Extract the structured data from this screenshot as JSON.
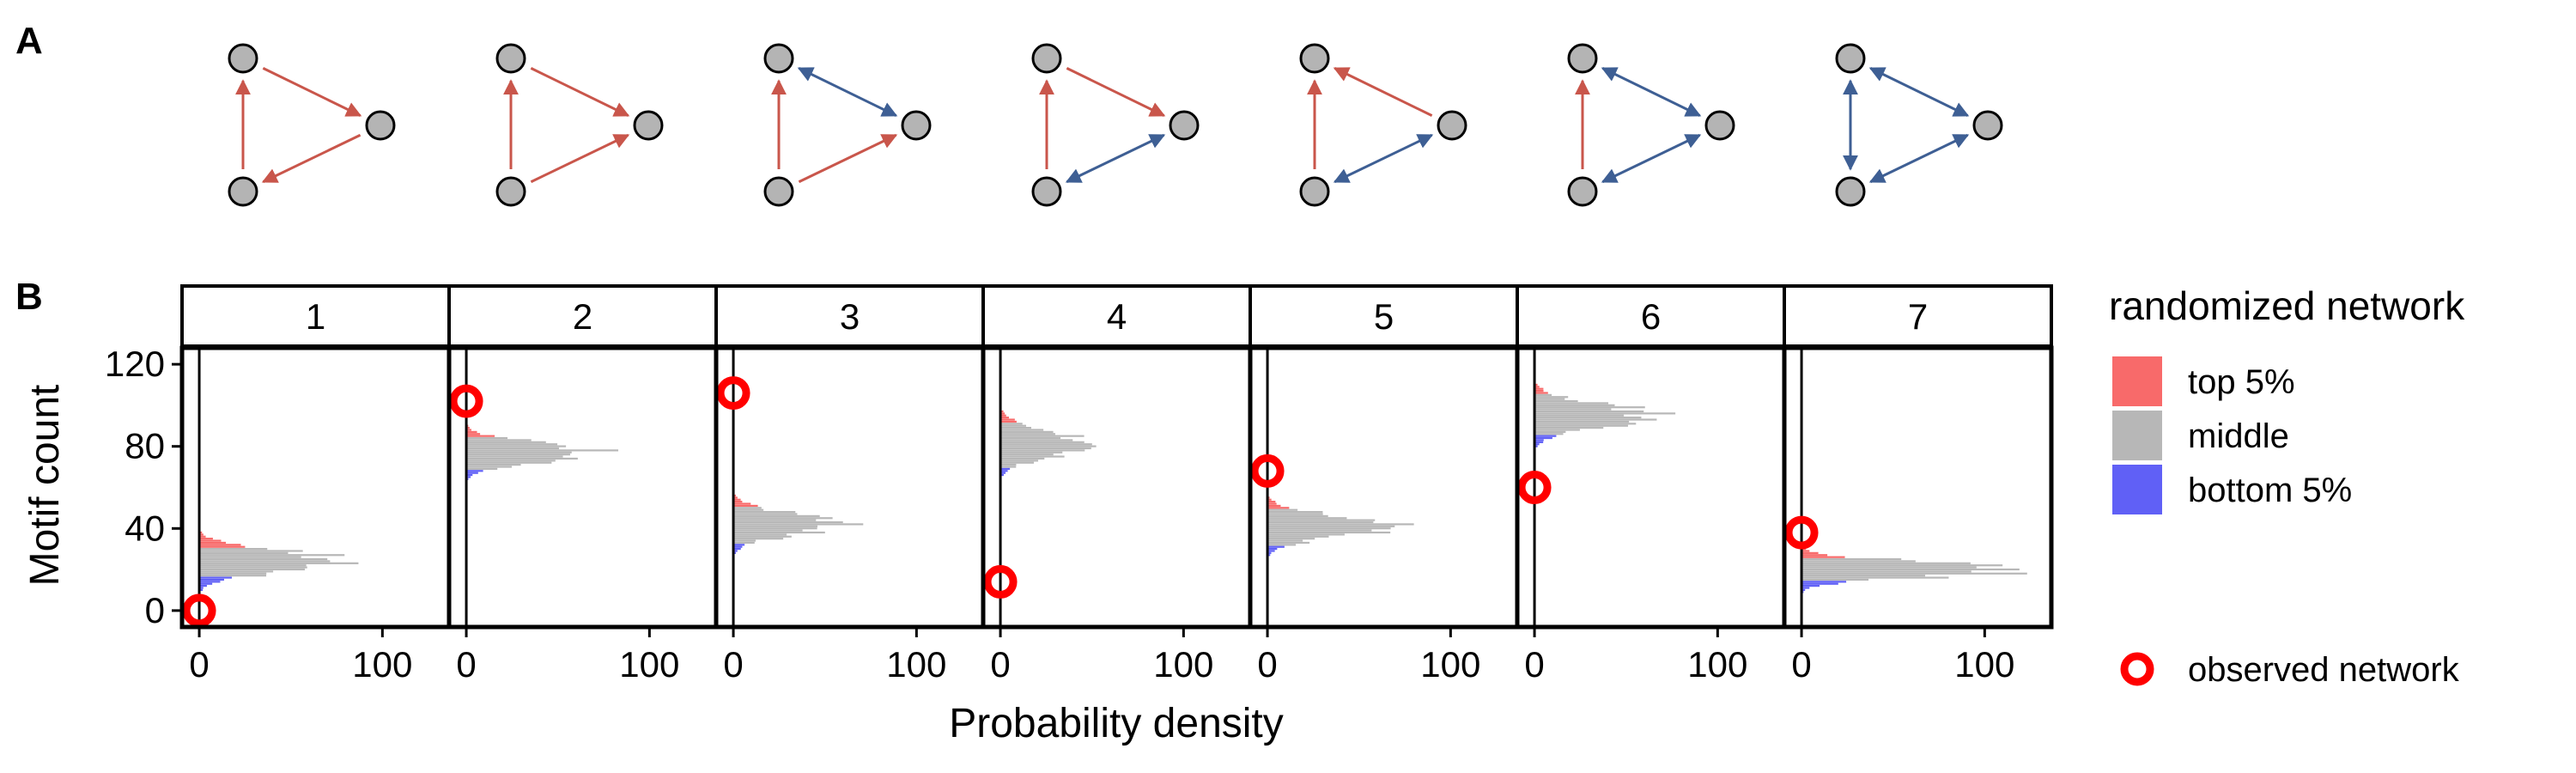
{
  "panel_labels": [
    "A",
    "B"
  ],
  "motifs": [
    {
      "edges": [
        {
          "f": 0,
          "t": 1,
          "bi": false
        },
        {
          "f": 1,
          "t": 2,
          "bi": false
        },
        {
          "f": 2,
          "t": 0,
          "bi": false
        }
      ]
    },
    {
      "edges": [
        {
          "f": 0,
          "t": 1,
          "bi": false
        },
        {
          "f": 2,
          "t": 1,
          "bi": false
        },
        {
          "f": 2,
          "t": 0,
          "bi": false
        }
      ]
    },
    {
      "edges": [
        {
          "f": 0,
          "t": 1,
          "bi": true
        },
        {
          "f": 2,
          "t": 1,
          "bi": false
        },
        {
          "f": 2,
          "t": 0,
          "bi": false
        }
      ]
    },
    {
      "edges": [
        {
          "f": 0,
          "t": 1,
          "bi": false
        },
        {
          "f": 1,
          "t": 2,
          "bi": true
        },
        {
          "f": 2,
          "t": 0,
          "bi": false
        }
      ]
    },
    {
      "edges": [
        {
          "f": 1,
          "t": 0,
          "bi": false
        },
        {
          "f": 1,
          "t": 2,
          "bi": true
        },
        {
          "f": 2,
          "t": 0,
          "bi": false
        }
      ]
    },
    {
      "edges": [
        {
          "f": 0,
          "t": 1,
          "bi": true
        },
        {
          "f": 1,
          "t": 2,
          "bi": true
        },
        {
          "f": 2,
          "t": 0,
          "bi": false
        }
      ]
    },
    {
      "edges": [
        {
          "f": 0,
          "t": 1,
          "bi": true
        },
        {
          "f": 1,
          "t": 2,
          "bi": true
        },
        {
          "f": 0,
          "t": 2,
          "bi": true
        }
      ]
    }
  ],
  "colors": {
    "unidirectional_edge": "#c9564b",
    "bidirectional_edge": "#3e5f94",
    "node_fill": "#b4b4b4",
    "top": "#f86a6a",
    "middle": "#b7b7b7",
    "bottom": "#6060f6",
    "observed": "#ff0000"
  },
  "chart_data": {
    "type": "histogram",
    "orientation": "horizontal",
    "xlabel": "Probability density",
    "ylabel": "Motif count",
    "ylim": [
      -8,
      128
    ],
    "xlim": [
      -8,
      135
    ],
    "yticks": [
      0,
      40,
      80,
      120
    ],
    "xticks": [
      0,
      100
    ],
    "legend": {
      "title": "randomized network",
      "items": [
        {
          "key": "top",
          "label": "top 5%"
        },
        {
          "key": "middle",
          "label": "middle"
        },
        {
          "key": "bottom",
          "label": "bottom 5%"
        }
      ],
      "observed_label": "observed network"
    },
    "facets": [
      {
        "label": "1",
        "observed": 0,
        "mean": 24,
        "sd": 5.0,
        "peak": 82,
        "top_from": 31,
        "bottom_below": 17
      },
      {
        "label": "2",
        "observed": 102,
        "mean": 77,
        "sd": 4.5,
        "peak": 72,
        "top_from": 85,
        "bottom_below": 69
      },
      {
        "label": "3",
        "observed": 106,
        "mean": 42,
        "sd": 5.0,
        "peak": 60,
        "top_from": 51,
        "bottom_below": 33
      },
      {
        "label": "4",
        "observed": 14,
        "mean": 81,
        "sd": 6.0,
        "peak": 48,
        "top_from": 92,
        "bottom_below": 70
      },
      {
        "label": "5",
        "observed": 68,
        "mean": 41,
        "sd": 5.0,
        "peak": 70,
        "top_from": 50,
        "bottom_below": 32
      },
      {
        "label": "6",
        "observed": 60,
        "mean": 95,
        "sd": 5.5,
        "peak": 66,
        "top_from": 106,
        "bottom_below": 86
      },
      {
        "label": "7",
        "observed": 38,
        "mean": 20,
        "sd": 3.5,
        "peak": 128,
        "top_from": 26,
        "bottom_below": 15
      }
    ]
  }
}
